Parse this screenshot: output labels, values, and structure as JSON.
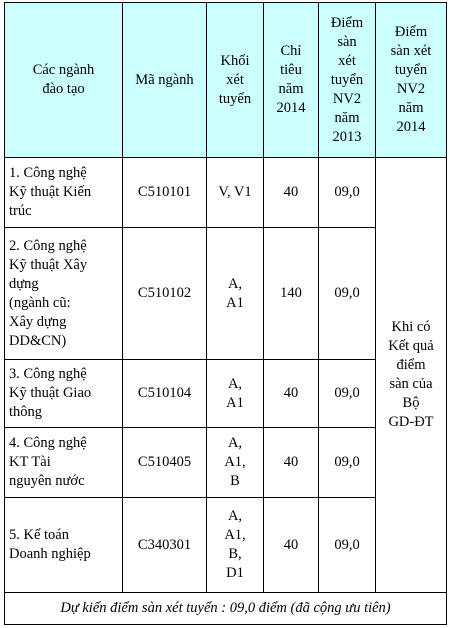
{
  "headers": {
    "major": [
      "Các ngành",
      "đào tạo"
    ],
    "code": [
      "Mã ngành"
    ],
    "block": [
      "Khối",
      "xét",
      "tuyển"
    ],
    "quota": [
      "Chỉ",
      "tiêu",
      "năm",
      "2014"
    ],
    "score2013": [
      "Điểm",
      "sàn",
      "xét",
      "tuyển",
      "NV2",
      "năm",
      "2013"
    ],
    "score2014": [
      "Điểm",
      "sàn xét",
      "tuyển",
      "NV2",
      "năm",
      "2014"
    ]
  },
  "rows": [
    {
      "major": [
        "1. Công nghệ",
        "Kỹ thuật Kiến",
        "trúc"
      ],
      "code": "C510101",
      "block": [
        "V, V1"
      ],
      "quota": "40",
      "score2013": "09,0"
    },
    {
      "major": [
        "2. Công nghệ",
        "Kỹ thuật Xây",
        "dựng",
        "(ngành cũ:",
        "Xây dựng",
        "DD&CN)"
      ],
      "code": "C510102",
      "block": [
        "A,",
        "A1"
      ],
      "quota": "140",
      "score2013": "09,0"
    },
    {
      "major": [
        "3. Công nghệ",
        "Kỹ thuật Giao",
        "thông"
      ],
      "code": "C510104",
      "block": [
        "A,",
        "A1"
      ],
      "quota": "40",
      "score2013": "09,0"
    },
    {
      "major": [
        "4. Công nghệ",
        "KT Tài",
        "nguyên nước"
      ],
      "code": "C510405",
      "block": [
        "A,",
        "A1,",
        "B"
      ],
      "quota": "40",
      "score2013": "09,0"
    },
    {
      "major": [
        "5. Kế toán",
        "Doanh nghiệp"
      ],
      "code": "C340301",
      "block": [
        "A,",
        "A1,",
        "B,",
        "D1"
      ],
      "quota": "40",
      "score2013": "09,0"
    }
  ],
  "note_2014": [
    "Khi có",
    "Kết quả",
    "điểm",
    "sàn của",
    "Bộ",
    "GD-ĐT"
  ],
  "footer": "Dự kiến điểm sàn xét tuyển : 09,0 điểm (đã cộng ưu tiên)"
}
